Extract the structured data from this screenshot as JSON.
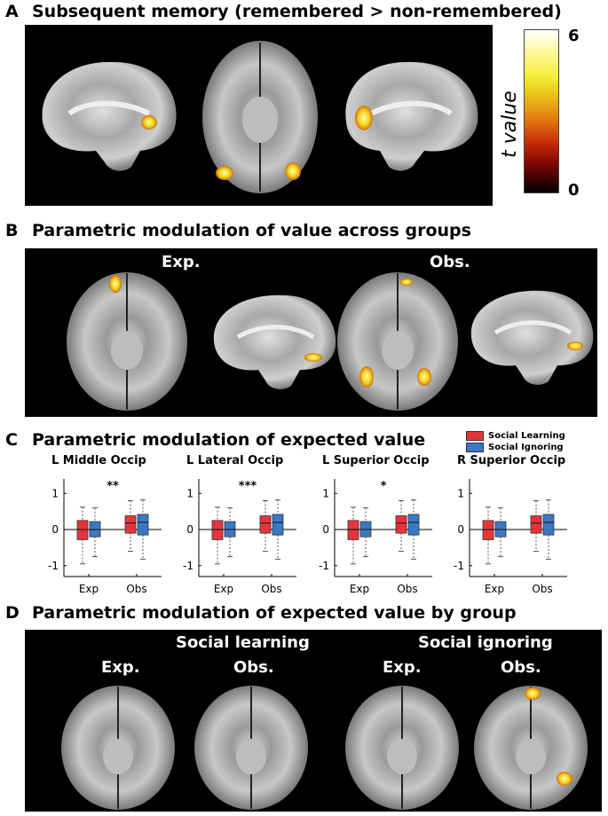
{
  "panels": {
    "A": {
      "letter": "A",
      "title": "Subsequent memory (remembered > non-remembered)"
    },
    "B": {
      "letter": "B",
      "title": "Parametric modulation of value across groups",
      "labels": [
        "Exp.",
        "Obs."
      ]
    },
    "C": {
      "letter": "C",
      "title": "Parametric modulation of expected value"
    },
    "D": {
      "letter": "D",
      "title": "Parametric modulation of expected value by group",
      "group1": "Social learning",
      "group2": "Social ignoring",
      "labels": [
        "Exp.",
        "Obs.",
        "Exp.",
        "Obs."
      ]
    }
  },
  "colorbar": {
    "max": "6",
    "min": "0",
    "label": "t value"
  },
  "legend": [
    {
      "label": "Social Learning",
      "color": "#e8333a"
    },
    {
      "label": "Social Ignoring",
      "color": "#3a78c6"
    }
  ],
  "chart_data": [
    {
      "type": "box",
      "title": "L Middle Occip",
      "categories": [
        "Exp",
        "Obs"
      ],
      "significance": "**",
      "ylim": [
        -1.3,
        1.4
      ],
      "yticks": [
        "1",
        "0",
        "-1"
      ],
      "series": [
        {
          "name": "Social Learning",
          "boxes": [
            {
              "q1": -0.28,
              "median": 0.0,
              "q3": 0.25,
              "low": -0.95,
              "high": 0.62
            },
            {
              "q1": -0.1,
              "median": 0.18,
              "q3": 0.38,
              "low": -0.6,
              "high": 0.8
            }
          ]
        },
        {
          "name": "Social Ignoring",
          "boxes": [
            {
              "q1": -0.2,
              "median": 0.0,
              "q3": 0.22,
              "low": -0.75,
              "high": 0.6
            },
            {
              "q1": -0.15,
              "median": 0.2,
              "q3": 0.42,
              "low": -0.82,
              "high": 0.82
            }
          ]
        }
      ]
    },
    {
      "type": "box",
      "title": "L Lateral Occip",
      "categories": [
        "Exp",
        "Obs"
      ],
      "significance": "***",
      "ylim": [
        -1.3,
        1.4
      ],
      "yticks": [
        "1",
        "0",
        "-1"
      ],
      "series": [
        {
          "name": "Social Learning",
          "boxes": [
            {
              "q1": -0.28,
              "median": 0.0,
              "q3": 0.25,
              "low": -0.95,
              "high": 0.62
            },
            {
              "q1": -0.1,
              "median": 0.18,
              "q3": 0.38,
              "low": -0.6,
              "high": 0.8
            }
          ]
        },
        {
          "name": "Social Ignoring",
          "boxes": [
            {
              "q1": -0.2,
              "median": 0.0,
              "q3": 0.22,
              "low": -0.75,
              "high": 0.6
            },
            {
              "q1": -0.15,
              "median": 0.2,
              "q3": 0.42,
              "low": -0.82,
              "high": 0.82
            }
          ]
        }
      ]
    },
    {
      "type": "box",
      "title": "L Superior Occip",
      "categories": [
        "Exp",
        "Obs"
      ],
      "significance": "*",
      "ylim": [
        -1.3,
        1.4
      ],
      "yticks": [
        "1",
        "0",
        "-1"
      ],
      "series": [
        {
          "name": "Social Learning",
          "boxes": [
            {
              "q1": -0.28,
              "median": 0.0,
              "q3": 0.25,
              "low": -0.95,
              "high": 0.62
            },
            {
              "q1": -0.1,
              "median": 0.18,
              "q3": 0.38,
              "low": -0.6,
              "high": 0.8
            }
          ]
        },
        {
          "name": "Social Ignoring",
          "boxes": [
            {
              "q1": -0.2,
              "median": 0.0,
              "q3": 0.22,
              "low": -0.75,
              "high": 0.6
            },
            {
              "q1": -0.15,
              "median": 0.2,
              "q3": 0.42,
              "low": -0.82,
              "high": 0.82
            }
          ]
        }
      ]
    },
    {
      "type": "box",
      "title": "R Superior Occip",
      "categories": [
        "Exp",
        "Obs"
      ],
      "significance": "",
      "ylim": [
        -1.3,
        1.4
      ],
      "yticks": [
        "1",
        "0",
        "-1"
      ],
      "series": [
        {
          "name": "Social Learning",
          "boxes": [
            {
              "q1": -0.28,
              "median": 0.0,
              "q3": 0.25,
              "low": -0.95,
              "high": 0.62
            },
            {
              "q1": -0.1,
              "median": 0.18,
              "q3": 0.38,
              "low": -0.6,
              "high": 0.8
            }
          ]
        },
        {
          "name": "Social Ignoring",
          "boxes": [
            {
              "q1": -0.2,
              "median": 0.0,
              "q3": 0.22,
              "low": -0.75,
              "high": 0.6
            },
            {
              "q1": -0.15,
              "median": 0.2,
              "q3": 0.42,
              "low": -0.82,
              "high": 0.82
            }
          ]
        }
      ]
    }
  ]
}
